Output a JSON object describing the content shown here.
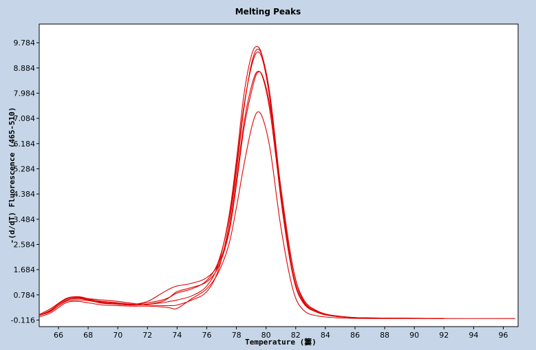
{
  "chart_data": {
    "type": "line",
    "title": "Melting Peaks",
    "xlabel": "Temperature (簍)",
    "ylabel": "-(d/dT) Fluorescence (465-510)",
    "xlim": [
      64.7,
      97
    ],
    "ylim": [
      -0.35,
      10.45
    ],
    "x_ticks": [
      66,
      68,
      70,
      72,
      74,
      76,
      78,
      80,
      82,
      84,
      86,
      88,
      90,
      92,
      94,
      96
    ],
    "y_ticks": [
      -0.116,
      0.784,
      1.684,
      2.584,
      3.484,
      4.384,
      5.284,
      6.184,
      7.084,
      7.984,
      8.884,
      9.784
    ],
    "y_tick_labels": [
      "-0.116",
      "0.784",
      "1.684",
      "2.584",
      "3.484",
      "4.384",
      "5.284",
      "6.184",
      "7.084",
      "7.984",
      "8.884",
      "9.784"
    ],
    "grid": false,
    "legend": "none",
    "line_color": "#dd0000",
    "series": [
      {
        "x": [
          64.7,
          65.5,
          66.5,
          67.3,
          68,
          69,
          70,
          71,
          72,
          73,
          73.5,
          74,
          75,
          76,
          76.8,
          77.5,
          78,
          78.5,
          79,
          79.4,
          79.8,
          80.3,
          81,
          81.8,
          82.5,
          83.5,
          85,
          87,
          92
        ],
        "y": [
          0.05,
          0.2,
          0.58,
          0.65,
          0.6,
          0.5,
          0.45,
          0.42,
          0.45,
          0.5,
          0.55,
          0.6,
          0.75,
          1.1,
          1.9,
          3.6,
          5.6,
          7.9,
          9.3,
          9.65,
          9.2,
          7.6,
          4.2,
          1.5,
          0.5,
          0.15,
          0.0,
          -0.04,
          -0.06
        ]
      },
      {
        "x": [
          64.7,
          65.5,
          66.5,
          67.3,
          68,
          69,
          70,
          71,
          72,
          73,
          73.5,
          74,
          75,
          76,
          76.8,
          77.5,
          78,
          78.5,
          79,
          79.4,
          79.8,
          80.3,
          81,
          81.8,
          82.5,
          83.5,
          85,
          87,
          92
        ],
        "y": [
          0.05,
          0.25,
          0.62,
          0.68,
          0.62,
          0.55,
          0.5,
          0.45,
          0.5,
          0.6,
          0.7,
          0.85,
          1.0,
          1.3,
          2.0,
          3.5,
          5.4,
          7.5,
          8.9,
          9.45,
          9.1,
          7.6,
          4.4,
          1.6,
          0.55,
          0.15,
          0.0,
          -0.04,
          -0.06
        ]
      },
      {
        "x": [
          64.7,
          65.5,
          66.5,
          67.3,
          68,
          69,
          70,
          71,
          72,
          73,
          73.5,
          74,
          75,
          76,
          76.8,
          77.5,
          78,
          78.5,
          79,
          79.4,
          79.8,
          80.3,
          81,
          81.8,
          82.5,
          83.5,
          85,
          87,
          92
        ],
        "y": [
          0.08,
          0.3,
          0.65,
          0.72,
          0.65,
          0.52,
          0.48,
          0.45,
          0.55,
          0.85,
          1.0,
          1.1,
          1.2,
          1.4,
          1.9,
          3.1,
          4.9,
          6.9,
          8.2,
          8.75,
          8.5,
          7.2,
          4.3,
          1.6,
          0.55,
          0.15,
          0.0,
          -0.04,
          -0.06
        ]
      },
      {
        "x": [
          64.7,
          65.5,
          66.5,
          67.3,
          68,
          69,
          70,
          71,
          72,
          73,
          73.5,
          74,
          75,
          76,
          76.8,
          77.5,
          78,
          78.5,
          79,
          79.4,
          79.8,
          80.3,
          81,
          81.8,
          82.5,
          83.5,
          85,
          87,
          92
        ],
        "y": [
          0.05,
          0.22,
          0.55,
          0.6,
          0.58,
          0.48,
          0.45,
          0.42,
          0.45,
          0.55,
          0.7,
          0.9,
          1.05,
          1.25,
          1.8,
          3.0,
          4.7,
          6.7,
          8.0,
          8.7,
          8.55,
          7.4,
          4.6,
          1.8,
          0.65,
          0.2,
          0.01,
          -0.04,
          -0.06
        ]
      },
      {
        "x": [
          64.7,
          65.5,
          66.5,
          67.3,
          68,
          69,
          70,
          71,
          72,
          73,
          73.5,
          74,
          75,
          76,
          76.8,
          77.5,
          78,
          78.5,
          79,
          79.4,
          79.8,
          80.3,
          81,
          81.8,
          82.5,
          83.5,
          85,
          87,
          92
        ],
        "y": [
          0.0,
          0.15,
          0.5,
          0.55,
          0.5,
          0.42,
          0.4,
          0.38,
          0.38,
          0.35,
          0.32,
          0.3,
          0.65,
          1.0,
          1.6,
          2.6,
          3.9,
          5.4,
          6.7,
          7.3,
          7.05,
          5.9,
          3.2,
          1.0,
          0.25,
          0.03,
          -0.04,
          -0.06,
          -0.06
        ]
      },
      {
        "x": [
          64.7,
          65.5,
          66.5,
          67.3,
          68,
          69,
          70,
          71,
          72,
          73,
          73.5,
          74,
          75,
          76,
          76.8,
          77.5,
          78,
          78.5,
          79,
          79.4,
          79.8,
          80.3,
          81,
          81.8,
          82.5,
          83.5,
          85,
          87,
          92,
          96.8
        ],
        "y": [
          0.05,
          0.25,
          0.65,
          0.7,
          0.65,
          0.6,
          0.55,
          0.48,
          0.42,
          0.4,
          0.4,
          0.42,
          0.6,
          0.9,
          1.7,
          3.3,
          5.2,
          7.4,
          9.0,
          9.55,
          9.2,
          7.8,
          4.6,
          1.8,
          0.6,
          0.18,
          0.02,
          -0.04,
          -0.06,
          -0.06
        ]
      }
    ]
  }
}
